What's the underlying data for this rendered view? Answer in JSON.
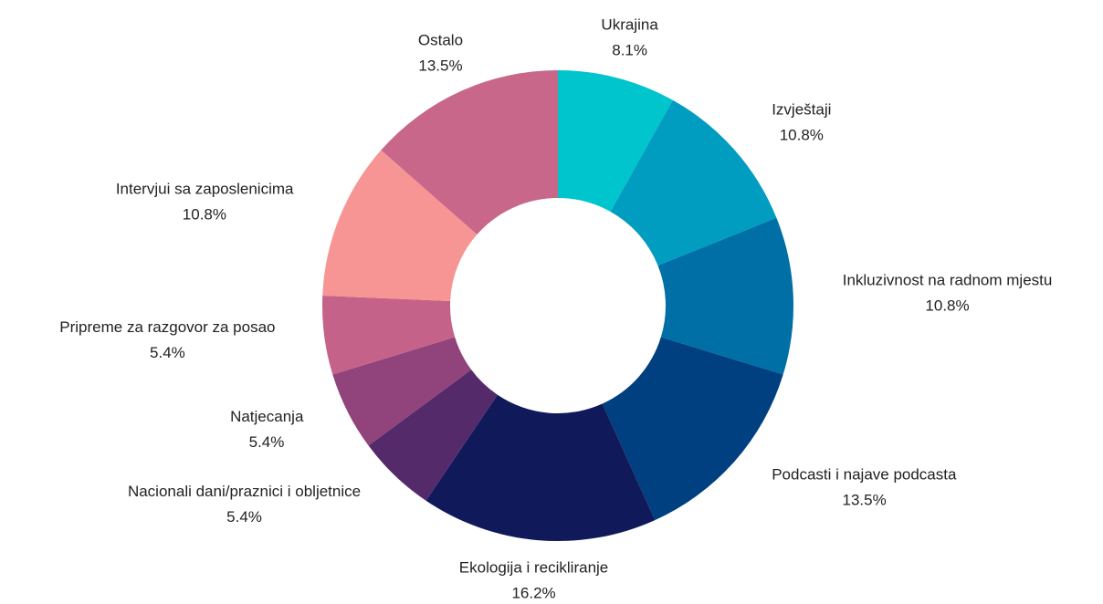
{
  "chart_data": {
    "type": "donut",
    "categories": [
      "Ukrajina",
      "Izvještaji",
      "Inkluzivnost na radnom mjestu",
      "Podcasti i najave podcasta",
      "Ekologija i recikliranje",
      "Nacionali dani/praznici i obljetnice",
      "Natjecanja",
      "Pripreme za razgovor za posao",
      "Intervjui sa zaposlenicima",
      "Ostalo"
    ],
    "values": [
      8.1,
      10.8,
      10.8,
      13.5,
      16.2,
      5.4,
      5.4,
      5.4,
      10.8,
      13.5
    ],
    "value_labels": [
      "8.1%",
      "10.8%",
      "10.8%",
      "13.5%",
      "16.2%",
      "5.4%",
      "5.4%",
      "5.4%",
      "10.8%",
      "13.5%"
    ],
    "colors": [
      "#00c5cd",
      "#009dc1",
      "#006fa6",
      "#003f80",
      "#10195a",
      "#552a6b",
      "#91437b",
      "#c5628a",
      "#f79494",
      "#c8678a"
    ]
  }
}
